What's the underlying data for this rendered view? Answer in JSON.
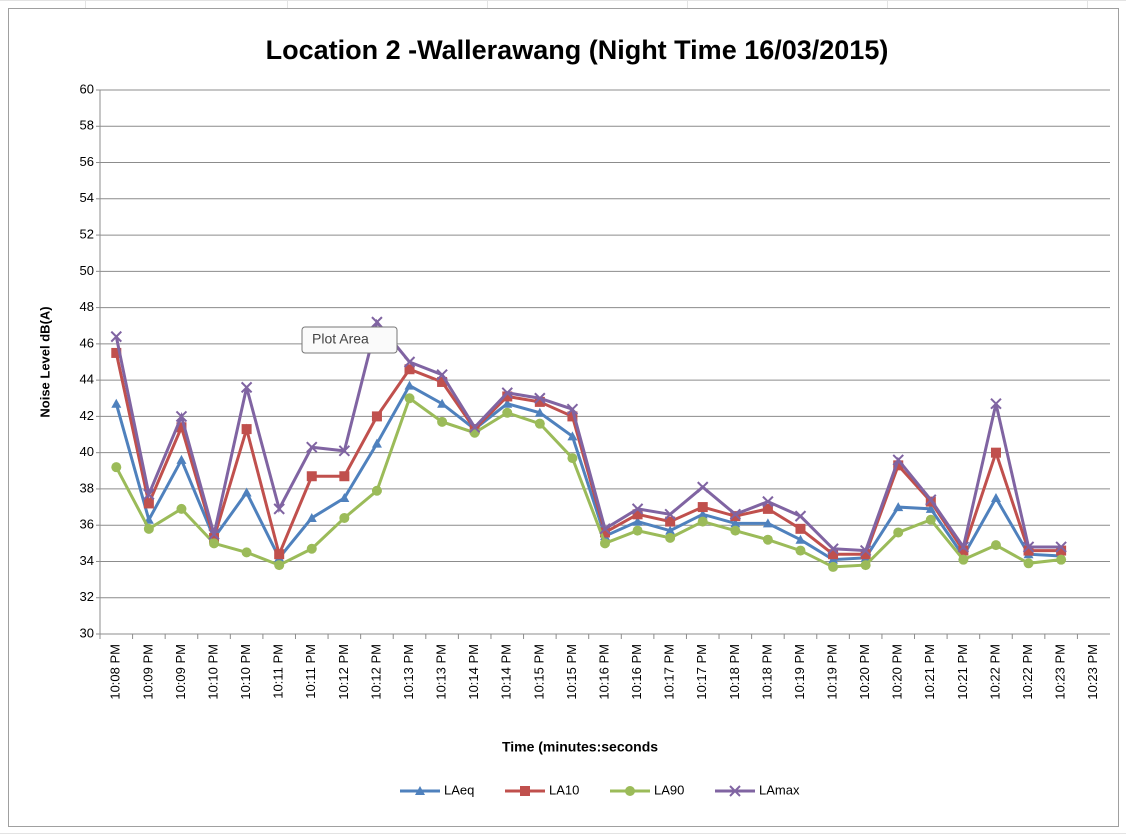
{
  "chart_data": {
    "type": "line",
    "title": "Location 2 -Wallerawang  (Night Time 16/03/2015)",
    "x_label": "Time (minutes:seconds",
    "y_label": "Noise Level dB(A)",
    "tooltip": "Plot Area",
    "categories": [
      "10:08 PM",
      "10:09 PM",
      "10:09 PM",
      "10:10 PM",
      "10:10 PM",
      "10:11 PM",
      "10:11 PM",
      "10:12 PM",
      "10:12 PM",
      "10:13 PM",
      "10:13 PM",
      "10:14 PM",
      "10:14 PM",
      "10:15 PM",
      "10:15 PM",
      "10:16 PM",
      "10:16 PM",
      "10:17 PM",
      "10:17 PM",
      "10:18 PM",
      "10:18 PM",
      "10:19 PM",
      "10:19 PM",
      "10:20 PM",
      "10:20 PM",
      "10:21 PM",
      "10:21 PM",
      "10:22 PM",
      "10:22 PM",
      "10:23 PM",
      "10:23 PM"
    ],
    "series": [
      {
        "name": "LAeq",
        "color": "#4f81bd",
        "marker": "triangle",
        "values": [
          42.7,
          36.3,
          39.6,
          35.3,
          37.8,
          34.2,
          36.4,
          37.5,
          40.5,
          43.7,
          42.7,
          41.3,
          42.7,
          42.2,
          40.9,
          35.4,
          36.2,
          35.7,
          36.6,
          36.1,
          36.1,
          35.2,
          34.1,
          34.2,
          37.0,
          36.9,
          34.3,
          37.5,
          34.4,
          34.3,
          null
        ]
      },
      {
        "name": "LA10",
        "color": "#c0504d",
        "marker": "square",
        "values": [
          45.5,
          37.2,
          41.4,
          35.3,
          41.3,
          34.4,
          38.7,
          38.7,
          42.0,
          44.6,
          43.9,
          41.3,
          43.1,
          42.8,
          42.0,
          35.6,
          36.6,
          36.2,
          37.0,
          36.5,
          36.9,
          35.8,
          34.4,
          34.4,
          39.3,
          37.3,
          34.6,
          40.0,
          34.6,
          34.6,
          null
        ]
      },
      {
        "name": "LA90",
        "color": "#9bbb59",
        "marker": "circle",
        "values": [
          39.2,
          35.8,
          36.9,
          35.0,
          34.5,
          33.8,
          34.7,
          36.4,
          37.9,
          43.0,
          41.7,
          41.1,
          42.2,
          41.6,
          39.7,
          35.0,
          35.7,
          35.3,
          36.2,
          35.7,
          35.2,
          34.6,
          33.7,
          33.8,
          35.6,
          36.3,
          34.1,
          34.9,
          33.9,
          34.1,
          null
        ]
      },
      {
        "name": "LAmax",
        "color": "#8064a2",
        "marker": "x",
        "values": [
          46.4,
          37.7,
          42.0,
          35.5,
          43.6,
          36.9,
          40.3,
          40.1,
          47.2,
          45.0,
          44.3,
          41.4,
          43.3,
          43.0,
          42.4,
          35.8,
          36.9,
          36.6,
          38.1,
          36.6,
          37.3,
          36.5,
          34.7,
          34.6,
          39.6,
          37.4,
          34.8,
          42.7,
          34.8,
          34.8,
          null
        ]
      }
    ],
    "ylim": [
      30,
      60
    ],
    "yticks": [
      30,
      32,
      34,
      36,
      38,
      40,
      42,
      44,
      46,
      48,
      50,
      52,
      54,
      56,
      58,
      60
    ],
    "grid": true,
    "legend": "bottom"
  }
}
